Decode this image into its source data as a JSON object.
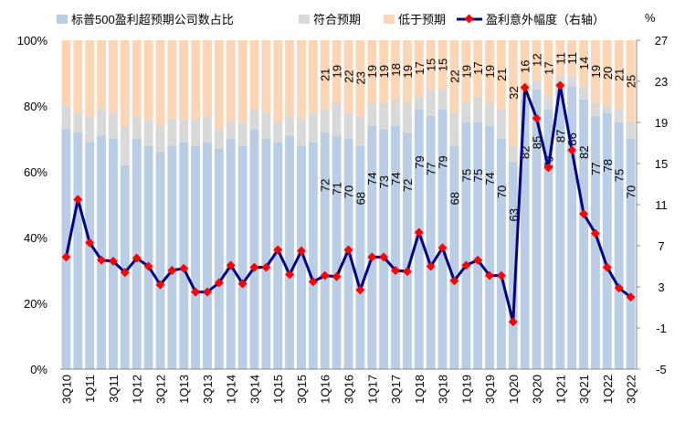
{
  "chart_data": {
    "type": "bar",
    "subtype": "stacked-100 with line on secondary axis",
    "legend": {
      "placement": "top",
      "entries": [
        "标普500盈利超预期公司数占比",
        "符合预期",
        "低于预期",
        "盈利意外幅度（右轴）"
      ]
    },
    "colors": {
      "beat": "#B9CDE5",
      "inline": "#D9D9D9",
      "miss": "#FCD5B5",
      "line": "#000080",
      "marker": "#FF0000"
    },
    "right_unit": "%",
    "ylim": [
      0,
      100
    ],
    "yticks": [
      "0%",
      "20%",
      "40%",
      "60%",
      "80%",
      "100%"
    ],
    "y2lim": [
      -5,
      27
    ],
    "y2ticks": [
      "-5",
      "-1",
      "3",
      "7",
      "11",
      "15",
      "19",
      "23",
      "27"
    ],
    "categories": [
      "3Q10",
      "4Q10",
      "1Q11",
      "2Q11",
      "3Q11",
      "4Q11",
      "1Q12",
      "2Q12",
      "3Q12",
      "4Q12",
      "1Q13",
      "2Q13",
      "3Q13",
      "4Q13",
      "1Q14",
      "2Q14",
      "3Q14",
      "4Q14",
      "1Q15",
      "2Q15",
      "3Q15",
      "4Q15",
      "1Q16",
      "2Q16",
      "3Q16",
      "4Q16",
      "1Q17",
      "2Q17",
      "3Q17",
      "4Q17",
      "1Q18",
      "2Q18",
      "3Q18",
      "4Q18",
      "1Q19",
      "2Q19",
      "3Q19",
      "4Q19",
      "1Q20",
      "2Q20",
      "3Q20",
      "4Q20",
      "1Q21",
      "2Q21",
      "3Q21",
      "4Q21",
      "1Q22",
      "2Q22",
      "3Q22"
    ],
    "xtick_labels": [
      "3Q10",
      "1Q11",
      "3Q11",
      "1Q12",
      "3Q12",
      "1Q13",
      "3Q13",
      "1Q14",
      "3Q14",
      "1Q15",
      "3Q15",
      "1Q16",
      "3Q16",
      "1Q17",
      "3Q17",
      "1Q18",
      "3Q18",
      "1Q19",
      "3Q19",
      "1Q20",
      "3Q20",
      "1Q21",
      "3Q21",
      "1Q22",
      "3Q22"
    ],
    "beat": [
      73,
      72,
      69,
      71,
      70,
      62,
      70,
      68,
      66,
      68,
      69,
      68,
      69,
      67,
      70,
      68,
      73,
      70,
      69,
      71,
      68,
      69,
      72,
      71,
      70,
      68,
      74,
      73,
      74,
      72,
      79,
      77,
      79,
      68,
      75,
      75,
      74,
      70,
      63,
      82,
      85,
      79,
      87,
      86,
      82,
      77,
      78,
      75,
      70
    ],
    "miss": [
      20,
      22,
      23,
      21,
      22,
      26,
      23,
      24,
      26,
      24,
      24,
      24,
      23,
      27,
      25,
      25,
      21,
      22,
      25,
      23,
      24,
      22,
      21,
      19,
      22,
      23,
      19,
      19,
      18,
      19,
      17,
      15,
      15,
      22,
      19,
      17,
      19,
      21,
      32,
      16,
      12,
      17,
      11,
      11,
      14,
      19,
      20,
      21,
      25
    ],
    "beat_labels": [
      null,
      null,
      null,
      null,
      null,
      null,
      null,
      null,
      null,
      null,
      null,
      null,
      null,
      null,
      null,
      null,
      null,
      null,
      null,
      null,
      null,
      null,
      "72",
      "71",
      "70",
      "68",
      "74",
      "73",
      "74",
      "72",
      "79",
      "77",
      "79",
      "68",
      "75",
      "75",
      "74",
      "70",
      "63",
      "82",
      "85",
      "79",
      "87",
      "86",
      "82",
      "77",
      "78",
      "75",
      "70"
    ],
    "miss_labels": [
      null,
      null,
      null,
      null,
      null,
      null,
      null,
      null,
      null,
      null,
      null,
      null,
      null,
      null,
      null,
      null,
      null,
      null,
      null,
      null,
      null,
      null,
      "21",
      "19",
      "22",
      "23",
      "19",
      "19",
      "18",
      "19",
      "17",
      "15",
      "15",
      "22",
      "19",
      "17",
      "19",
      "21",
      "32",
      "16",
      "12",
      "17",
      "11",
      "11",
      "14",
      "19",
      "20",
      "21",
      "25"
    ],
    "surprise": [
      5.9,
      11.5,
      7.3,
      5.6,
      5.5,
      4.4,
      5.8,
      5.0,
      3.2,
      4.6,
      4.8,
      2.5,
      2.5,
      3.4,
      5.1,
      3.3,
      4.9,
      4.9,
      6.6,
      4.2,
      6.5,
      3.5,
      4.1,
      4.0,
      6.6,
      2.7,
      5.9,
      5.9,
      4.6,
      4.5,
      8.3,
      5.0,
      6.8,
      3.6,
      5.1,
      5.6,
      4.1,
      4.1,
      -0.4,
      22.4,
      19.4,
      14.6,
      22.6,
      16.3,
      10.1,
      8.2,
      4.9,
      2.9,
      2.0
    ]
  }
}
